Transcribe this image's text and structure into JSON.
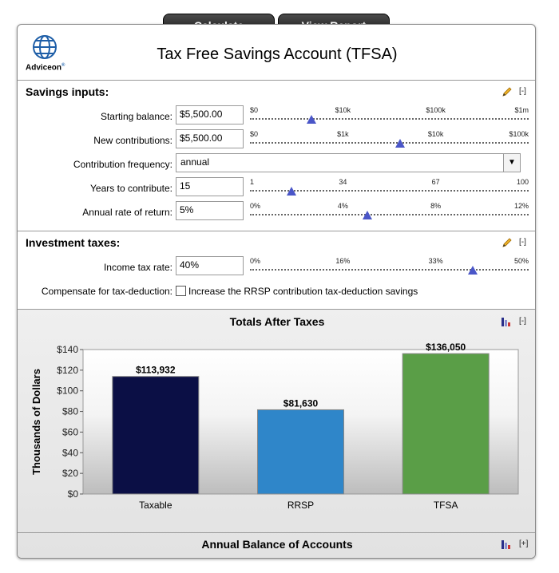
{
  "top_buttons": {
    "calculate": "Calculate",
    "view_report": "View Report"
  },
  "logo": {
    "text": "Adviceon",
    "mark": "®"
  },
  "page_title": "Tax Free Savings Account (TFSA)",
  "savings_inputs": {
    "heading": "Savings inputs:",
    "collapse_label": "[-]",
    "fields": [
      {
        "label": "Starting balance:",
        "value": "$5,500.00",
        "ticks": [
          "$0",
          "$10k",
          "$100k",
          "$1m"
        ],
        "slider_fraction": 0.22
      },
      {
        "label": "New contributions:",
        "value": "$5,500.00",
        "ticks": [
          "$0",
          "$1k",
          "$10k",
          "$100k"
        ],
        "slider_fraction": 0.54
      },
      {
        "label": "Contribution frequency:",
        "value": "annual"
      },
      {
        "label": "Years to contribute:",
        "value": "15",
        "ticks": [
          "1",
          "34",
          "67",
          "100"
        ],
        "slider_fraction": 0.15
      },
      {
        "label": "Annual rate of return:",
        "value": "5%",
        "ticks": [
          "0%",
          "4%",
          "8%",
          "12%"
        ],
        "slider_fraction": 0.42
      }
    ]
  },
  "investment_taxes": {
    "heading": "Investment taxes:",
    "collapse_label": "[-]",
    "income_tax": {
      "label": "Income tax rate:",
      "value": "40%",
      "ticks": [
        "0%",
        "16%",
        "33%",
        "50%"
      ],
      "slider_fraction": 0.8
    },
    "compensate": {
      "label": "Compensate for tax-deduction:",
      "checkbox_label": "Increase the RRSP contribution tax-deduction savings",
      "checked": false
    }
  },
  "chart_section": {
    "collapse_label": "[-]",
    "footer_title": "Annual Balance of Accounts",
    "footer_expand_label": "[+]"
  },
  "chart_data": {
    "type": "bar",
    "title": "Totals After Taxes",
    "ylabel": "Thousands of Dollars",
    "xlabel": "",
    "categories": [
      "Taxable",
      "RRSP",
      "TFSA"
    ],
    "values": [
      113.932,
      81.63,
      136.05
    ],
    "data_labels": [
      "$113,932",
      "$81,630",
      "$136,050"
    ],
    "colors": [
      "#0b0f45",
      "#2f86c9",
      "#5a9e47"
    ],
    "ylim": [
      0,
      140
    ],
    "yticks": [
      "$0",
      "$20",
      "$40",
      "$60",
      "$80",
      "$100",
      "$120",
      "$140"
    ],
    "grid": false,
    "legend": "none"
  }
}
